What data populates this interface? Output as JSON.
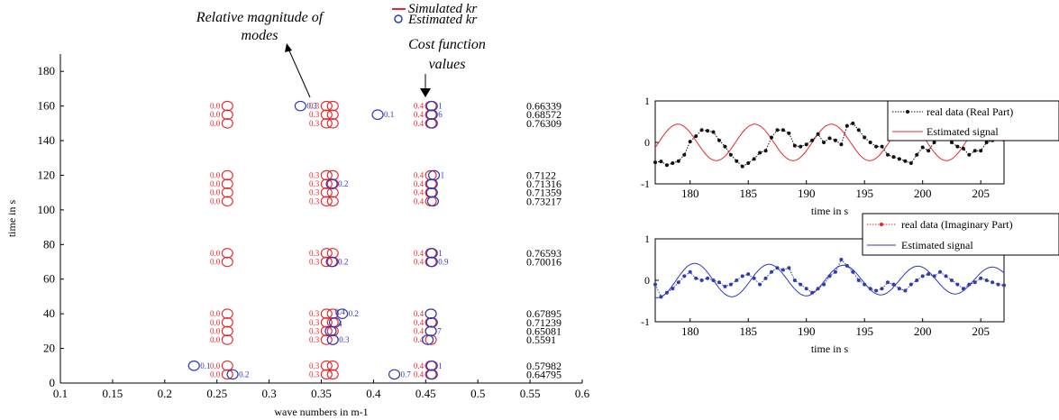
{
  "colors": {
    "simulated": "#e8262a",
    "estimated": "#2f3ab6",
    "axis": "#000000",
    "real_series": "#111111",
    "imag_series": "#e8262a"
  },
  "annotations": {
    "magnitude_line1": "Relative magnitude of",
    "magnitude_line2": "modes",
    "cost_line1": "Cost function",
    "cost_line2": "values"
  },
  "chart_data": [
    {
      "type": "scatter",
      "xlabel": "wave numbers in m-1",
      "ylabel": "time in s",
      "xlim": [
        0.1,
        0.6
      ],
      "ylim": [
        0,
        190
      ],
      "xticks": [
        0.1,
        0.15,
        0.2,
        0.25,
        0.3,
        0.35,
        0.4,
        0.45,
        0.5,
        0.55,
        0.6
      ],
      "yticks": [
        0,
        20,
        40,
        60,
        80,
        100,
        120,
        140,
        160,
        180
      ],
      "legend": {
        "placement": "top",
        "entries": [
          "Simulated kr",
          "Estimated kr"
        ]
      },
      "simulated_kr": [
        0.26,
        0.355,
        0.361,
        0.455
      ],
      "simulated_times": [
        5,
        10,
        25,
        30,
        35,
        40,
        70,
        75,
        105,
        110,
        115,
        120,
        150,
        155,
        160
      ],
      "simulated_labels": [
        {
          "kr": 0.26,
          "text": "0.0"
        },
        {
          "kr": 0.355,
          "text": "0.3"
        },
        {
          "kr": 0.455,
          "text": "0.4"
        }
      ],
      "estimated": [
        {
          "t": 160,
          "kr": 0.33,
          "label": "0.3"
        },
        {
          "t": 160,
          "kr": 0.456,
          "label": "1"
        },
        {
          "t": 155,
          "kr": 0.404,
          "label": "0.1"
        },
        {
          "t": 155,
          "kr": 0.456,
          "label": "6"
        },
        {
          "t": 150,
          "kr": 0.456,
          "label": ""
        },
        {
          "t": 120,
          "kr": 0.458,
          "label": "1"
        },
        {
          "t": 115,
          "kr": 0.36,
          "label": "0.2"
        },
        {
          "t": 115,
          "kr": 0.456,
          "label": ""
        },
        {
          "t": 110,
          "kr": 0.456,
          "label": ""
        },
        {
          "t": 105,
          "kr": 0.457,
          "label": ""
        },
        {
          "t": 75,
          "kr": 0.456,
          "label": "1"
        },
        {
          "t": 70,
          "kr": 0.36,
          "label": "0.2"
        },
        {
          "t": 70,
          "kr": 0.456,
          "label": "0.9"
        },
        {
          "t": 40,
          "kr": 0.37,
          "label": "0.2"
        },
        {
          "t": 40,
          "kr": 0.455,
          "label": ""
        },
        {
          "t": 35,
          "kr": 0.363,
          "label": ""
        },
        {
          "t": 35,
          "kr": 0.456,
          "label": ""
        },
        {
          "t": 30,
          "kr": 0.359,
          "label": ""
        },
        {
          "t": 30,
          "kr": 0.455,
          "label": "7"
        },
        {
          "t": 25,
          "kr": 0.361,
          "label": "0.3"
        },
        {
          "t": 25,
          "kr": 0.452,
          "label": ""
        },
        {
          "t": 10,
          "kr": 0.228,
          "label": "0.1"
        },
        {
          "t": 10,
          "kr": 0.456,
          "label": "1"
        },
        {
          "t": 5,
          "kr": 0.265,
          "label": "0.2"
        },
        {
          "t": 5,
          "kr": 0.42,
          "label": "0.7"
        },
        {
          "t": 5,
          "kr": 0.456,
          "label": ""
        }
      ],
      "cost_values": [
        {
          "t": 160,
          "text": "0.66339"
        },
        {
          "t": 155,
          "text": "0.68572"
        },
        {
          "t": 150,
          "text": "0.76309"
        },
        {
          "t": 120,
          "text": "0.7122"
        },
        {
          "t": 115,
          "text": "0.71316"
        },
        {
          "t": 110,
          "text": "0.71359"
        },
        {
          "t": 105,
          "text": "0.73217"
        },
        {
          "t": 75,
          "text": "0.76593"
        },
        {
          "t": 70,
          "text": "0.70016"
        },
        {
          "t": 40,
          "text": "0.67895"
        },
        {
          "t": 35,
          "text": "0.71239"
        },
        {
          "t": 30,
          "text": "0.65081"
        },
        {
          "t": 25,
          "text": "0.5591"
        },
        {
          "t": 10,
          "text": "0.57982"
        },
        {
          "t": 5,
          "text": "0.64795"
        }
      ],
      "extra_labels": [
        {
          "t": 41,
          "kr": 0.363,
          "text": "0.4"
        },
        {
          "t": 34,
          "kr": 0.366,
          "text": "4"
        }
      ]
    },
    {
      "type": "line",
      "xlabel": "time in s",
      "ylabel": "",
      "xlim": [
        177,
        207
      ],
      "ylim": [
        -1,
        1
      ],
      "xticks": [
        180,
        185,
        190,
        195,
        200,
        205
      ],
      "yticks": [
        -1,
        0,
        1
      ],
      "legend": {
        "placement": "top-right"
      },
      "series": [
        {
          "name": "real data (Real Part)",
          "style": "dotted-markers",
          "x": [
            177,
            177.5,
            178,
            178.5,
            179,
            179.5,
            180,
            180.5,
            181,
            181.5,
            182,
            182.5,
            183,
            183.5,
            184,
            184.5,
            185,
            185.5,
            186,
            186.5,
            187,
            187.5,
            188,
            188.5,
            189,
            189.5,
            190,
            190.5,
            191,
            191.5,
            192,
            192.5,
            193,
            193.5,
            194,
            194.5,
            195,
            195.5,
            196,
            196.5,
            197,
            197.5,
            198,
            198.5,
            199,
            199.5,
            200,
            200.5,
            201,
            201.5,
            202,
            202.5,
            203,
            203.5,
            204,
            204.5,
            205,
            205.5,
            206,
            206.5,
            207
          ],
          "y": [
            -0.48,
            -0.46,
            -0.55,
            -0.5,
            -0.45,
            -0.3,
            0.02,
            0.15,
            0.3,
            0.28,
            0.25,
            0.05,
            -0.1,
            -0.3,
            -0.45,
            -0.58,
            -0.5,
            -0.4,
            -0.25,
            -0.2,
            0.12,
            0.3,
            0.3,
            0.22,
            -0.08,
            -0.1,
            -0.05,
            0.05,
            0.2,
            0.0,
            0.1,
            0.05,
            -0.05,
            0.4,
            0.46,
            0.3,
            0.12,
            0.0,
            -0.1,
            -0.1,
            -0.3,
            -0.35,
            -0.4,
            -0.45,
            -0.5,
            -0.3,
            -0.12,
            -0.2,
            0.0,
            0.1,
            0.12,
            0.0,
            -0.1,
            -0.15,
            -0.3,
            -0.2,
            -0.2,
            0.0,
            0.05,
            0.12,
            0.1
          ]
        },
        {
          "name": "Estimated signal",
          "style": "solid",
          "amplitude": 0.44,
          "period": 6.6,
          "phase": 177.3
        }
      ]
    },
    {
      "type": "line",
      "xlabel": "time in s",
      "ylabel": "",
      "xlim": [
        177,
        207
      ],
      "ylim": [
        -1,
        1
      ],
      "xticks": [
        180,
        185,
        190,
        195,
        200,
        205
      ],
      "yticks": [
        -1,
        0,
        1
      ],
      "legend": {
        "placement": "top-right"
      },
      "series": [
        {
          "name": "real data (Imaginary Part)",
          "style": "dotted-markers",
          "x": [
            177,
            177.5,
            178,
            178.5,
            179,
            179.5,
            180,
            180.5,
            181,
            181.5,
            182,
            182.5,
            183,
            183.5,
            184,
            184.5,
            185,
            185.5,
            186,
            186.5,
            187,
            187.5,
            188,
            188.5,
            189,
            189.5,
            190,
            190.5,
            191,
            191.5,
            192,
            192.5,
            193,
            193.5,
            194,
            194.5,
            195,
            195.5,
            196,
            196.5,
            197,
            197.5,
            198,
            198.5,
            199,
            199.5,
            200,
            200.5,
            201,
            201.5,
            202,
            202.5,
            203,
            203.5,
            204,
            204.5,
            205,
            205.5,
            206,
            206.5,
            207
          ],
          "y": [
            -0.1,
            -0.4,
            -0.3,
            -0.2,
            -0.05,
            0.1,
            0.2,
            0.05,
            0.0,
            0.05,
            0.0,
            -0.05,
            -0.15,
            -0.1,
            0.0,
            0.1,
            0.15,
            0.05,
            -0.1,
            0.05,
            0.2,
            0.3,
            0.25,
            0.3,
            0.0,
            -0.1,
            -0.2,
            -0.3,
            -0.2,
            -0.1,
            0.1,
            0.2,
            0.5,
            0.35,
            0.2,
            0.0,
            -0.1,
            -0.2,
            -0.25,
            -0.2,
            -0.05,
            -0.1,
            -0.2,
            -0.25,
            -0.1,
            0.0,
            0.1,
            0.15,
            0.1,
            0.2,
            0.1,
            0.0,
            -0.1,
            -0.2,
            -0.1,
            -0.05,
            0.05,
            0.0,
            -0.05,
            -0.1,
            -0.12
          ]
        },
        {
          "name": "Estimated signal",
          "style": "solid",
          "amplitude": 0.42,
          "period": 6.4,
          "phase": 178.8,
          "decay": 0.25
        }
      ]
    }
  ]
}
